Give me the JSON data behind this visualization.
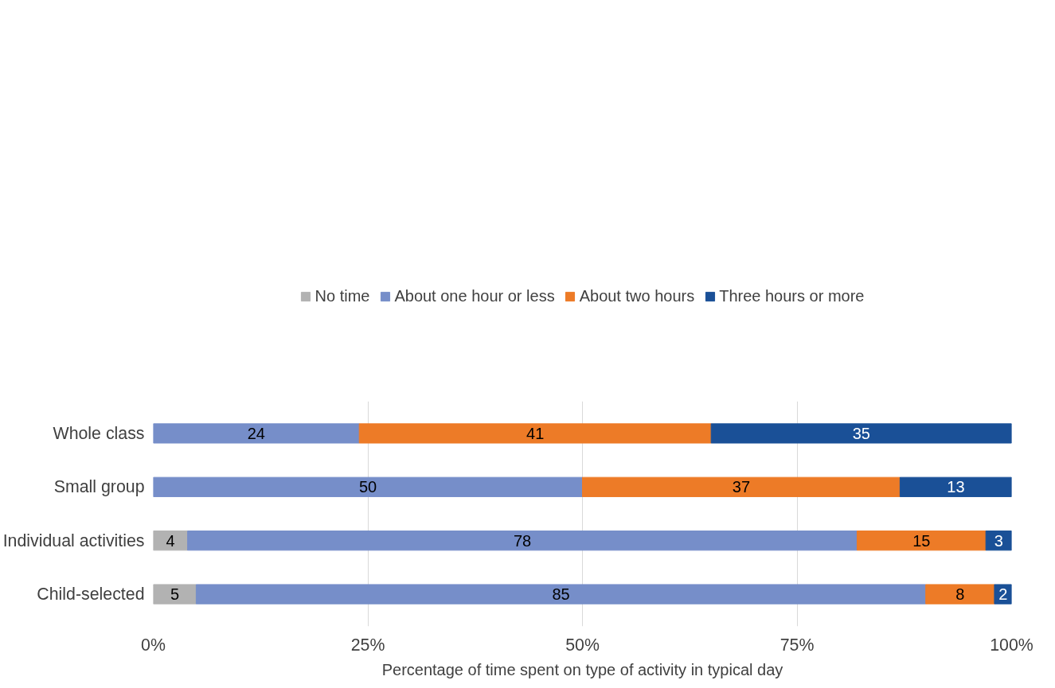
{
  "chart_data": {
    "type": "bar",
    "orientation": "horizontal",
    "stacked": true,
    "xlabel": "Percentage of time spent on type of activity in typical day",
    "categories": [
      "Whole class",
      "Small group",
      "Individual activities",
      "Child-selected"
    ],
    "series": [
      {
        "name": "No time",
        "color": "#b2b2b2",
        "values": [
          null,
          null,
          4,
          5
        ]
      },
      {
        "name": "About one hour or less",
        "color": "#768ec9",
        "values": [
          24,
          50,
          78,
          85
        ]
      },
      {
        "name": "About two hours",
        "color": "#ed7b27",
        "values": [
          41,
          37,
          15,
          8
        ]
      },
      {
        "name": "Three hours or more",
        "color": "#1a5097",
        "values": [
          35,
          13,
          3,
          2
        ]
      }
    ],
    "xlim": [
      0,
      100
    ],
    "xticks": [
      {
        "value": 0,
        "label": "0%"
      },
      {
        "value": 25,
        "label": "25%"
      },
      {
        "value": 50,
        "label": "50%"
      },
      {
        "value": 75,
        "label": "75%"
      },
      {
        "value": 100,
        "label": "100%"
      }
    ],
    "grid": "x",
    "legend": "top",
    "data_labels": true
  }
}
